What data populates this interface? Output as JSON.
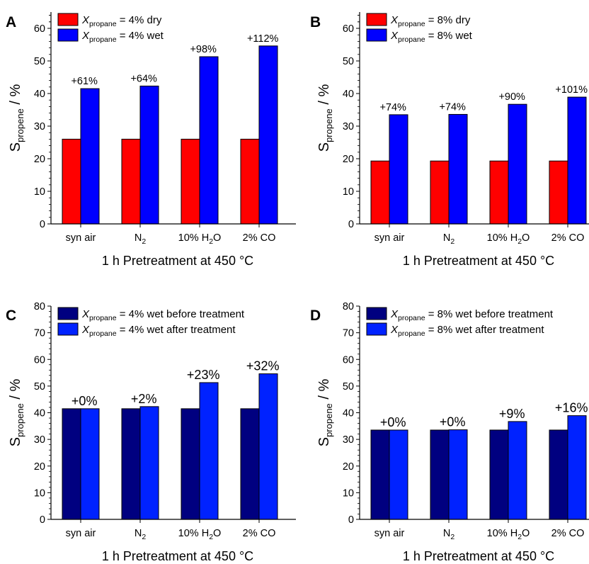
{
  "colors": {
    "dry": "#ff0000",
    "wet": "#0000ff",
    "before": "#000080",
    "after": "#0022ff",
    "axis": "#000000"
  },
  "chart_data": [
    {
      "panel": "A",
      "type": "bar",
      "categories": [
        "syn air",
        "N2",
        "10% H2O",
        "2% CO"
      ],
      "series": [
        {
          "name": "X_propane = 4% dry",
          "values": [
            26,
            26,
            26,
            26
          ],
          "color": "#ff0000"
        },
        {
          "name": "X_propane = 4% wet",
          "values": [
            41.5,
            42.3,
            51.3,
            54.6
          ],
          "color": "#0000ff"
        }
      ],
      "annotations": [
        "+61%",
        "+64%",
        "+98%",
        "+112%"
      ],
      "xlabel": "1 h Pretreatment at 450 °C",
      "ylabel": "S_propene / %",
      "ylim": [
        0,
        65
      ],
      "yticks": [
        0,
        10,
        20,
        30,
        40,
        50,
        60
      ],
      "legend": "top-left",
      "grid": false
    },
    {
      "panel": "B",
      "type": "bar",
      "categories": [
        "syn air",
        "N2",
        "10% H2O",
        "2% CO"
      ],
      "series": [
        {
          "name": "X_propane = 8% dry",
          "values": [
            19.3,
            19.3,
            19.3,
            19.3
          ],
          "color": "#ff0000"
        },
        {
          "name": "X_propane = 8% wet",
          "values": [
            33.5,
            33.6,
            36.7,
            38.9
          ],
          "color": "#0000ff"
        }
      ],
      "annotations": [
        "+74%",
        "+74%",
        "+90%",
        "+101%"
      ],
      "xlabel": "1 h Pretreatment at 450 °C",
      "ylabel": "S_propene / %",
      "ylim": [
        0,
        65
      ],
      "yticks": [
        0,
        10,
        20,
        30,
        40,
        50,
        60
      ],
      "legend": "top-left",
      "grid": false
    },
    {
      "panel": "C",
      "type": "bar",
      "categories": [
        "syn air",
        "N2",
        "10% H2O",
        "2% CO"
      ],
      "series": [
        {
          "name": "X_propane = 4% wet before treatment",
          "values": [
            41.5,
            41.5,
            41.5,
            41.5
          ],
          "color": "#000080"
        },
        {
          "name": "X_propane = 4% wet after treatment",
          "values": [
            41.5,
            42.3,
            51.3,
            54.6
          ],
          "color": "#0022ff"
        }
      ],
      "annotations": [
        "+0%",
        "+2%",
        "+23%",
        "+32%"
      ],
      "xlabel": "1 h Pretreatment at 450 °C",
      "ylabel": "S_propene / %",
      "ylim": [
        0,
        80
      ],
      "yticks": [
        0,
        10,
        20,
        30,
        40,
        50,
        60,
        70,
        80
      ],
      "legend": "top-left",
      "grid": false
    },
    {
      "panel": "D",
      "type": "bar",
      "categories": [
        "syn air",
        "N2",
        "10% H2O",
        "2% CO"
      ],
      "series": [
        {
          "name": "X_propane = 8% wet before treatment",
          "values": [
            33.5,
            33.5,
            33.5,
            33.5
          ],
          "color": "#000080"
        },
        {
          "name": "X_propane = 8% wet after treatment",
          "values": [
            33.5,
            33.6,
            36.7,
            38.9
          ],
          "color": "#0022ff"
        }
      ],
      "annotations": [
        "+0%",
        "+0%",
        "+9%",
        "+16%"
      ],
      "xlabel": "1 h Pretreatment at 450 °C",
      "ylabel": "S_propene / %",
      "ylim": [
        0,
        80
      ],
      "yticks": [
        0,
        10,
        20,
        30,
        40,
        50,
        60,
        70,
        80
      ],
      "legend": "top-left",
      "grid": false
    }
  ],
  "panels": [
    {
      "letter": "A",
      "legend": [
        {
          "pre": "X",
          "sub": "propane",
          "post": " = 4% dry"
        },
        {
          "pre": "X",
          "sub": "propane",
          "post": " = 4% wet"
        }
      ],
      "categories": [
        {
          "main": "syn air",
          "sub": "",
          "tail": ""
        },
        {
          "main": "N",
          "sub": "2",
          "tail": ""
        },
        {
          "main": "10% H",
          "sub": "2",
          "tail": "O"
        },
        {
          "main": "2% CO",
          "sub": "",
          "tail": ""
        }
      ],
      "ylabel": {
        "main": "S",
        "sub": "propene",
        "tail": " / %"
      },
      "xlabel": "1 h Pretreatment at 450 °C"
    },
    {
      "letter": "B",
      "legend": [
        {
          "pre": "X",
          "sub": "propane",
          "post": " = 8% dry"
        },
        {
          "pre": "X",
          "sub": "propane",
          "post": " = 8% wet"
        }
      ],
      "categories": [
        {
          "main": "syn air",
          "sub": "",
          "tail": ""
        },
        {
          "main": "N",
          "sub": "2",
          "tail": ""
        },
        {
          "main": "10% H",
          "sub": "2",
          "tail": "O"
        },
        {
          "main": "2% CO",
          "sub": "",
          "tail": ""
        }
      ],
      "ylabel": {
        "main": "S",
        "sub": "propene",
        "tail": " / %"
      },
      "xlabel": "1 h Pretreatment at 450 °C"
    },
    {
      "letter": "C",
      "legend": [
        {
          "pre": "X",
          "sub": "propane",
          "post": " = 4% wet before treatment"
        },
        {
          "pre": "X",
          "sub": "propane",
          "post": " = 4% wet after treatment"
        }
      ],
      "categories": [
        {
          "main": "syn air",
          "sub": "",
          "tail": ""
        },
        {
          "main": "N",
          "sub": "2",
          "tail": ""
        },
        {
          "main": "10% H",
          "sub": "2",
          "tail": "O"
        },
        {
          "main": "2% CO",
          "sub": "",
          "tail": ""
        }
      ],
      "ylabel": {
        "main": "S",
        "sub": "propene",
        "tail": " / %"
      },
      "xlabel": "1 h Pretreatment at 450 °C"
    },
    {
      "letter": "D",
      "legend": [
        {
          "pre": "X",
          "sub": "propane",
          "post": " = 8% wet before treatment"
        },
        {
          "pre": "X",
          "sub": "propane",
          "post": " = 8% wet after treatment"
        }
      ],
      "categories": [
        {
          "main": "syn air",
          "sub": "",
          "tail": ""
        },
        {
          "main": "N",
          "sub": "2",
          "tail": ""
        },
        {
          "main": "10% H",
          "sub": "2",
          "tail": "O"
        },
        {
          "main": "2% CO",
          "sub": "",
          "tail": ""
        }
      ],
      "ylabel": {
        "main": "S",
        "sub": "propene",
        "tail": " / %"
      },
      "xlabel": "1 h Pretreatment at 450 °C"
    }
  ]
}
